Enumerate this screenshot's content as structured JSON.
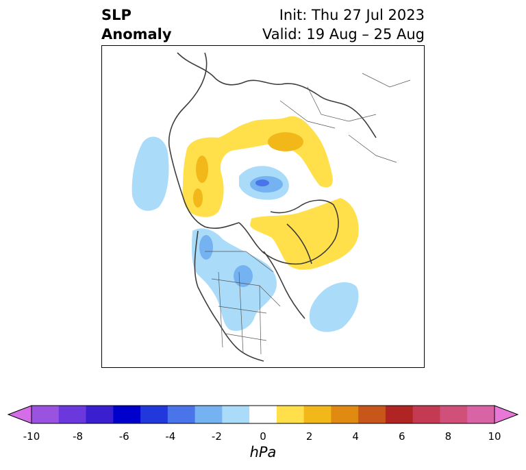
{
  "title": {
    "left_line1": "SLP",
    "left_line2": "Anomaly",
    "right_line1": "Init: Thu 27 Jul 2023",
    "right_line2": "Valid: 19 Aug – 25 Aug"
  },
  "colorbar": {
    "unit": "hPa",
    "ticks": [
      "-10",
      "-8",
      "-6",
      "-4",
      "-2",
      "0",
      "2",
      "4",
      "6",
      "8",
      "10"
    ],
    "colors": [
      "#d36ee8",
      "#9a52e0",
      "#6a38dc",
      "#3a1fd0",
      "#0000cc",
      "#2038dc",
      "#4a74ea",
      "#74b2f2",
      "#aadcfa",
      "#ffffff",
      "#ffe04a",
      "#f2b81a",
      "#e08a12",
      "#c8561a",
      "#b02424",
      "#c43a52",
      "#d0507a",
      "#d864a6",
      "#e878d6"
    ]
  },
  "map": {
    "projection": "north polar stereographic",
    "anomaly_regions": [
      {
        "name": "positive-anomaly-eurasia",
        "level": "+1 to +2 hPa",
        "color": "#ffe04a"
      },
      {
        "name": "positive-anomaly-greenland",
        "level": "+1 to +2 hPa",
        "color": "#ffe04a"
      },
      {
        "name": "negative-anomaly-arctic",
        "level": "-1 to -4 hPa",
        "color": "#aadcfa"
      },
      {
        "name": "negative-anomaly-north-america",
        "level": "-1 to -3 hPa",
        "color": "#aadcfa"
      },
      {
        "name": "negative-anomaly-north-pacific",
        "level": "-1 to -2 hPa",
        "color": "#aadcfa"
      },
      {
        "name": "negative-anomaly-north-atlantic",
        "level": "-1 to -2 hPa",
        "color": "#aadcfa"
      }
    ]
  }
}
